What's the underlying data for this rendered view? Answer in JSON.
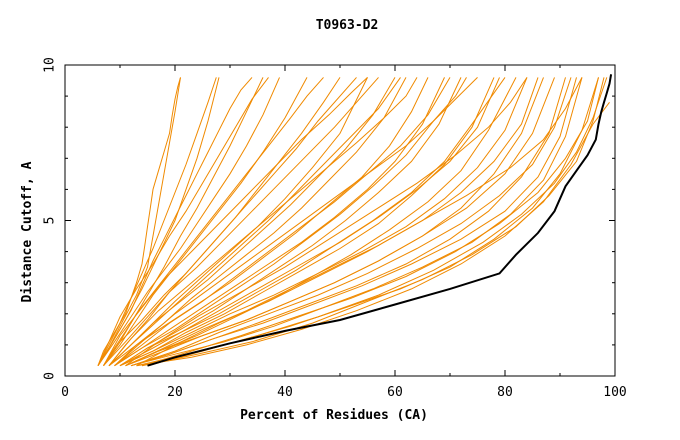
{
  "chart_data": {
    "type": "line",
    "title": "T0963-D2",
    "xlabel": "Percent of Residues (CA)",
    "ylabel": "Distance Cutoff, A",
    "xlim": [
      0,
      100
    ],
    "ylim": [
      0,
      10
    ],
    "x_ticks": [
      0,
      20,
      40,
      60,
      80,
      100
    ],
    "y_ticks": [
      0,
      5,
      10
    ],
    "grid": false,
    "series_colors": {
      "models": "#f08a00",
      "best": "#000000"
    },
    "best_series": {
      "x": [
        15,
        20,
        30,
        40,
        50,
        60,
        70,
        79,
        82,
        86,
        89,
        91,
        93,
        95,
        96.5,
        97,
        97.5,
        98,
        98.5,
        99,
        99.3
      ],
      "y": [
        0.33,
        0.6,
        1.05,
        1.45,
        1.8,
        2.3,
        2.8,
        3.3,
        3.9,
        4.6,
        5.3,
        6.1,
        6.6,
        7.1,
        7.6,
        8.1,
        8.5,
        8.8,
        9.1,
        9.4,
        9.7
      ]
    },
    "model_series": [
      {
        "x": [
          6,
          7,
          9,
          11,
          12,
          13,
          14,
          14.5,
          15,
          15.5,
          16,
          17,
          18,
          19,
          19.5,
          20,
          20.5,
          21
        ],
        "y": [
          0.33,
          0.8,
          1.4,
          2,
          2.5,
          3,
          3.6,
          4.2,
          4.8,
          5.4,
          6,
          6.6,
          7.2,
          7.8,
          8.4,
          8.9,
          9.3,
          9.6
        ]
      },
      {
        "x": [
          6,
          8,
          10,
          13,
          15,
          16,
          17,
          18,
          19,
          20,
          21
        ],
        "y": [
          0.33,
          0.9,
          1.6,
          2.6,
          3.5,
          4.5,
          5.5,
          6.5,
          7.5,
          8.5,
          9.6
        ]
      },
      {
        "x": [
          6,
          8,
          11,
          14,
          17,
          20,
          22,
          24,
          26,
          28
        ],
        "y": [
          0.33,
          0.9,
          1.8,
          2.8,
          3.9,
          5,
          6,
          7,
          8.2,
          9.6
        ]
      },
      {
        "x": [
          7,
          9,
          12,
          15,
          18,
          21,
          24,
          27,
          30,
          33,
          36
        ],
        "y": [
          0.33,
          0.9,
          1.7,
          2.6,
          3.5,
          4.5,
          5.4,
          6.4,
          7.4,
          8.5,
          9.6
        ]
      },
      {
        "x": [
          7,
          10,
          13,
          16,
          20,
          24,
          28,
          32,
          36,
          40,
          44
        ],
        "y": [
          0.33,
          1,
          1.8,
          2.6,
          3.5,
          4.4,
          5.3,
          6.2,
          7.2,
          8.3,
          9.6
        ]
      },
      {
        "x": [
          8,
          11,
          15,
          19,
          23,
          27,
          31,
          35,
          39,
          43,
          47,
          50
        ],
        "y": [
          0.33,
          1,
          1.8,
          2.7,
          3.5,
          4.3,
          5.1,
          6,
          6.9,
          7.8,
          8.8,
          9.6
        ]
      },
      {
        "x": [
          8,
          12,
          16,
          20,
          25,
          30,
          35,
          40,
          45,
          50,
          55
        ],
        "y": [
          0.33,
          1,
          1.7,
          2.4,
          3.2,
          4,
          4.8,
          5.7,
          6.7,
          7.8,
          9.6
        ]
      },
      {
        "x": [
          9,
          13,
          18,
          23,
          28,
          33,
          38,
          43,
          48,
          53,
          58,
          62
        ],
        "y": [
          0.33,
          1,
          1.7,
          2.5,
          3.2,
          3.9,
          4.6,
          5.4,
          6.3,
          7.2,
          8.3,
          9.6
        ]
      },
      {
        "x": [
          9,
          14,
          19,
          25,
          31,
          37,
          43,
          49,
          55,
          60,
          65,
          69
        ],
        "y": [
          0.33,
          0.9,
          1.5,
          2.2,
          2.9,
          3.6,
          4.3,
          5.1,
          6,
          6.9,
          8.1,
          9.6
        ]
      },
      {
        "x": [
          10,
          15,
          21,
          27,
          33,
          39,
          45,
          51,
          57,
          63,
          68,
          72
        ],
        "y": [
          0.33,
          0.9,
          1.5,
          2.1,
          2.8,
          3.5,
          4.2,
          5,
          5.9,
          6.9,
          8.1,
          9.6
        ]
      },
      {
        "x": [
          10,
          16,
          22,
          29,
          36,
          43,
          50,
          57,
          63,
          69,
          74,
          78
        ],
        "y": [
          0.33,
          0.8,
          1.4,
          2,
          2.7,
          3.4,
          4.1,
          4.9,
          5.8,
          6.8,
          8,
          9.6
        ]
      },
      {
        "x": [
          11,
          17,
          24,
          31,
          38,
          45,
          52,
          59,
          66,
          72,
          77,
          82
        ],
        "y": [
          0.33,
          0.8,
          1.3,
          1.9,
          2.5,
          3.2,
          3.9,
          4.7,
          5.6,
          6.6,
          7.9,
          9.6
        ]
      },
      {
        "x": [
          11,
          18,
          25,
          33,
          41,
          49,
          57,
          65,
          72,
          78,
          83,
          87
        ],
        "y": [
          0.33,
          0.8,
          1.3,
          1.8,
          2.4,
          3,
          3.7,
          4.5,
          5.4,
          6.5,
          7.8,
          9.6
        ]
      },
      {
        "x": [
          12,
          19,
          27,
          35,
          44,
          53,
          62,
          70,
          77,
          83,
          88,
          91
        ],
        "y": [
          0.33,
          0.7,
          1.2,
          1.7,
          2.3,
          2.9,
          3.6,
          4.4,
          5.3,
          6.4,
          7.8,
          9.6
        ]
      },
      {
        "x": [
          12,
          20,
          29,
          38,
          47,
          56,
          65,
          74,
          81,
          87,
          91,
          94
        ],
        "y": [
          0.33,
          0.7,
          1.1,
          1.6,
          2.2,
          2.8,
          3.5,
          4.3,
          5.2,
          6.3,
          7.7,
          9.6
        ]
      },
      {
        "x": [
          13,
          22,
          31,
          41,
          51,
          61,
          70,
          78,
          85,
          90,
          94,
          97
        ],
        "y": [
          0.33,
          0.7,
          1.1,
          1.6,
          2.2,
          2.8,
          3.5,
          4.4,
          5.4,
          6.5,
          7.9,
          9.6
        ]
      },
      {
        "x": [
          14,
          24,
          34,
          45,
          55,
          65,
          74,
          82,
          88,
          93,
          96,
          98
        ],
        "y": [
          0.33,
          0.7,
          1.1,
          1.7,
          2.4,
          3.1,
          3.9,
          4.8,
          5.8,
          6.9,
          8.2,
          9.6
        ]
      },
      {
        "x": [
          13,
          23,
          33,
          43,
          53,
          63,
          72,
          80,
          87,
          92,
          96,
          99
        ],
        "y": [
          0.33,
          0.6,
          1,
          1.5,
          2.1,
          2.8,
          3.6,
          4.5,
          5.6,
          6.8,
          8.1,
          8.8
        ]
      },
      {
        "x": [
          6,
          9,
          12,
          14,
          16,
          18,
          20,
          22,
          24,
          26,
          28,
          30,
          32,
          34
        ],
        "y": [
          0.33,
          1.2,
          2.1,
          2.9,
          3.7,
          4.4,
          5.1,
          5.8,
          6.5,
          7.2,
          7.9,
          8.6,
          9.2,
          9.6
        ]
      },
      {
        "x": [
          6,
          9,
          12,
          15,
          18,
          21,
          24,
          27,
          30,
          33,
          36,
          39
        ],
        "y": [
          0.33,
          1.1,
          1.9,
          2.7,
          3.4,
          4.1,
          4.9,
          5.7,
          6.5,
          7.4,
          8.4,
          9.6
        ]
      },
      {
        "x": [
          7,
          10,
          14,
          18,
          22,
          26,
          30,
          34,
          38,
          42,
          46,
          53
        ],
        "y": [
          0.33,
          1.1,
          1.8,
          2.6,
          3.3,
          4.1,
          4.9,
          5.7,
          6.5,
          7.3,
          8.2,
          9.6
        ]
      },
      {
        "x": [
          8,
          12,
          16,
          21,
          26,
          31,
          36,
          41,
          46,
          51,
          56,
          60
        ],
        "y": [
          0.33,
          1,
          1.7,
          2.4,
          3.1,
          3.9,
          4.7,
          5.5,
          6.4,
          7.3,
          8.4,
          9.6
        ]
      },
      {
        "x": [
          8,
          13,
          18,
          24,
          30,
          36,
          42,
          48,
          54,
          59,
          63,
          66
        ],
        "y": [
          0.33,
          1,
          1.6,
          2.3,
          3,
          3.8,
          4.6,
          5.5,
          6.4,
          7.4,
          8.5,
          9.6
        ]
      },
      {
        "x": [
          9,
          14,
          20,
          26,
          32,
          38,
          44,
          50,
          56,
          62,
          67,
          75
        ],
        "y": [
          0.33,
          0.9,
          1.5,
          2.2,
          2.9,
          3.6,
          4.4,
          5.2,
          6.1,
          7.1,
          8.2,
          9.6
        ]
      },
      {
        "x": [
          10,
          15,
          21,
          28,
          35,
          42,
          49,
          56,
          63,
          69,
          74,
          80
        ],
        "y": [
          0.33,
          0.9,
          1.4,
          2,
          2.7,
          3.4,
          4.2,
          5,
          5.9,
          6.9,
          8.1,
          9.6
        ]
      },
      {
        "x": [
          10,
          16,
          23,
          30,
          38,
          46,
          54,
          62,
          69,
          75,
          80,
          84
        ],
        "y": [
          0.33,
          0.8,
          1.4,
          2,
          2.6,
          3.3,
          4,
          4.8,
          5.7,
          6.7,
          7.9,
          9.6
        ]
      },
      {
        "x": [
          11,
          17,
          25,
          33,
          41,
          49,
          57,
          65,
          73,
          80,
          85,
          89
        ],
        "y": [
          0.33,
          0.8,
          1.3,
          1.8,
          2.4,
          3,
          3.7,
          4.5,
          5.4,
          6.5,
          7.8,
          9.6
        ]
      },
      {
        "x": [
          12,
          19,
          27,
          36,
          45,
          54,
          63,
          72,
          80,
          86,
          90,
          93
        ],
        "y": [
          0.33,
          0.7,
          1.2,
          1.7,
          2.3,
          2.9,
          3.6,
          4.4,
          5.3,
          6.4,
          7.7,
          9.6
        ]
      },
      {
        "x": [
          6,
          8,
          10,
          12,
          14,
          16,
          18,
          20,
          22,
          24,
          26,
          27.5
        ],
        "y": [
          0.33,
          1,
          1.7,
          2.5,
          3.3,
          4.1,
          5,
          5.9,
          6.8,
          7.8,
          8.8,
          9.6
        ]
      },
      {
        "x": [
          6,
          8,
          10,
          13,
          16,
          19,
          22,
          25,
          28,
          31,
          34,
          37
        ],
        "y": [
          0.33,
          1.1,
          1.9,
          2.8,
          3.6,
          4.5,
          5.3,
          6.2,
          7.1,
          8,
          8.9,
          9.6
        ]
      },
      {
        "x": [
          7,
          10,
          13,
          17,
          21,
          25,
          29,
          33,
          37,
          41,
          44,
          47
        ],
        "y": [
          0.33,
          1.1,
          2,
          2.9,
          3.8,
          4.7,
          5.6,
          6.5,
          7.4,
          8.3,
          9,
          9.6
        ]
      },
      {
        "x": [
          7,
          11,
          15,
          19,
          24,
          29,
          34,
          39,
          44,
          49,
          53,
          57
        ],
        "y": [
          0.33,
          1.1,
          1.9,
          2.7,
          3.5,
          4.4,
          5.3,
          6.2,
          7.1,
          8,
          8.8,
          9.6
        ]
      },
      {
        "x": [
          8,
          12,
          17,
          22,
          27,
          32,
          37,
          42,
          47,
          52,
          57,
          61
        ],
        "y": [
          0.33,
          1,
          1.8,
          2.6,
          3.4,
          4.2,
          5,
          5.9,
          6.8,
          7.7,
          8.6,
          9.6
        ]
      },
      {
        "x": [
          9,
          14,
          19,
          25,
          31,
          37,
          43,
          49,
          55,
          61,
          66,
          70
        ],
        "y": [
          0.33,
          1,
          1.7,
          2.4,
          3.2,
          4,
          4.8,
          5.6,
          6.5,
          7.4,
          8.4,
          9.6
        ]
      },
      {
        "x": [
          10,
          16,
          22,
          29,
          36,
          43,
          50,
          57,
          64,
          70,
          75,
          79
        ],
        "y": [
          0.33,
          0.9,
          1.5,
          2.2,
          2.9,
          3.6,
          4.3,
          5.1,
          6,
          6.9,
          8,
          9.6
        ]
      },
      {
        "x": [
          11,
          18,
          25,
          33,
          41,
          49,
          57,
          65,
          72,
          78,
          83,
          86
        ],
        "y": [
          0.33,
          0.9,
          1.5,
          2.1,
          2.8,
          3.5,
          4.2,
          5,
          5.9,
          6.9,
          8.1,
          9.6
        ]
      },
      {
        "x": [
          12,
          20,
          28,
          37,
          46,
          55,
          64,
          72,
          79,
          85,
          89,
          92
        ],
        "y": [
          0.33,
          0.8,
          1.4,
          2,
          2.6,
          3.3,
          4.1,
          4.9,
          5.8,
          6.8,
          8,
          9.6
        ]
      },
      {
        "x": [
          14,
          23,
          32,
          42,
          52,
          62,
          71,
          79,
          86,
          91,
          95,
          97
        ],
        "y": [
          0.33,
          0.8,
          1.3,
          1.9,
          2.5,
          3.2,
          4,
          4.9,
          5.9,
          7,
          8.2,
          9.6
        ]
      },
      {
        "x": [
          15,
          25,
          35,
          46,
          57,
          67,
          76,
          83,
          89,
          93,
          96,
          98.5
        ],
        "y": [
          0.33,
          0.8,
          1.3,
          1.9,
          2.6,
          3.4,
          4.3,
          5.2,
          6.2,
          7.2,
          8.3,
          9.6
        ]
      },
      {
        "x": [
          7,
          10,
          14,
          18,
          23,
          28,
          33,
          38,
          43,
          48,
          52,
          55
        ],
        "y": [
          0.33,
          1.3,
          2.2,
          3.1,
          4,
          4.9,
          5.8,
          6.7,
          7.6,
          8.4,
          9.1,
          9.6
        ]
      },
      {
        "x": [
          8,
          12,
          17,
          23,
          29,
          35,
          41,
          47,
          53,
          58,
          62,
          64
        ],
        "y": [
          0.33,
          1.2,
          2.1,
          3,
          3.9,
          4.8,
          5.7,
          6.6,
          7.5,
          8.3,
          9,
          9.6
        ]
      },
      {
        "x": [
          9,
          14,
          20,
          27,
          34,
          41,
          48,
          55,
          62,
          67,
          71,
          73
        ],
        "y": [
          0.33,
          1.1,
          2,
          2.9,
          3.8,
          4.7,
          5.6,
          6.5,
          7.4,
          8.2,
          9,
          9.6
        ]
      },
      {
        "x": [
          11,
          17,
          24,
          32,
          40,
          48,
          56,
          64,
          71,
          77,
          81,
          84
        ],
        "y": [
          0.33,
          1.1,
          1.9,
          2.7,
          3.5,
          4.4,
          5.3,
          6.2,
          7.1,
          8,
          8.8,
          9.6
        ]
      },
      {
        "x": [
          13,
          20,
          28,
          37,
          46,
          55,
          64,
          73,
          81,
          87,
          91,
          94
        ],
        "y": [
          0.33,
          1,
          1.7,
          2.4,
          3.2,
          4,
          4.9,
          5.8,
          6.7,
          7.6,
          8.6,
          9.6
        ]
      }
    ]
  }
}
